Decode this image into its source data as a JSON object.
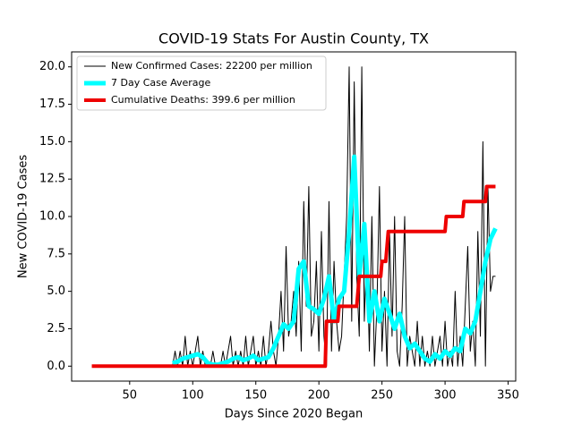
{
  "chart_data": {
    "type": "line",
    "title": "COVID-19 Stats For Austin County, TX",
    "xlabel": "Days Since 2020 Began",
    "ylabel": "New COVID-19 Cases",
    "xlim": [
      4,
      356
    ],
    "ylim": [
      -1,
      21
    ],
    "xticks": [
      50,
      100,
      150,
      200,
      250,
      300,
      350
    ],
    "yticks": [
      {
        "value": 0,
        "label": "0.0"
      },
      {
        "value": 2.5,
        "label": "2.5"
      },
      {
        "value": 5,
        "label": "5.0"
      },
      {
        "value": 7.5,
        "label": "7.5"
      },
      {
        "value": 10,
        "label": "10.0"
      },
      {
        "value": 12.5,
        "label": "12.5"
      },
      {
        "value": 15,
        "label": "15.0"
      },
      {
        "value": 17.5,
        "label": "17.5"
      },
      {
        "value": 20,
        "label": "20.0"
      }
    ],
    "legend": "upper left",
    "series": [
      {
        "name": "New Confirmed Cases: 22200 per million",
        "color": "#000000",
        "linewidth": 1,
        "x": [
          84,
          86,
          88,
          90,
          92,
          94,
          96,
          98,
          100,
          102,
          104,
          106,
          108,
          110,
          112,
          114,
          116,
          118,
          120,
          122,
          124,
          126,
          128,
          130,
          132,
          134,
          136,
          138,
          140,
          142,
          144,
          146,
          148,
          150,
          152,
          154,
          156,
          158,
          160,
          162,
          164,
          166,
          168,
          170,
          172,
          174,
          176,
          178,
          180,
          182,
          184,
          186,
          188,
          190,
          192,
          194,
          196,
          198,
          200,
          202,
          204,
          206,
          208,
          210,
          212,
          214,
          216,
          218,
          220,
          222,
          224,
          226,
          228,
          230,
          232,
          234,
          236,
          238,
          240,
          242,
          244,
          246,
          248,
          250,
          252,
          254,
          256,
          258,
          260,
          262,
          264,
          266,
          268,
          270,
          272,
          274,
          276,
          278,
          280,
          282,
          284,
          286,
          288,
          290,
          292,
          294,
          296,
          298,
          300,
          302,
          304,
          306,
          308,
          310,
          312,
          314,
          316,
          318,
          320,
          322,
          324,
          326,
          328,
          330,
          332,
          334,
          336,
          338,
          340
        ],
        "values": [
          0,
          1,
          0,
          1,
          0,
          2,
          0,
          1,
          0,
          1,
          2,
          0,
          1,
          0,
          0,
          0,
          1,
          0,
          0,
          0,
          1,
          0,
          1,
          2,
          0,
          1,
          0,
          1,
          0,
          2,
          0,
          1,
          2,
          0,
          1,
          0,
          2,
          0,
          1,
          3,
          1,
          0,
          2,
          5,
          1,
          8,
          2,
          3,
          5,
          2,
          7,
          1,
          11,
          4,
          12,
          2,
          3,
          7,
          1,
          9,
          2,
          0,
          11,
          1,
          7,
          3,
          1,
          2,
          6,
          10,
          20,
          3,
          19,
          6,
          2,
          20,
          3,
          8,
          1,
          10,
          0,
          4,
          12,
          1,
          5,
          0,
          9,
          2,
          10,
          1,
          0,
          4,
          10,
          0,
          2,
          1,
          0,
          3,
          0,
          2,
          0,
          1,
          0,
          2,
          0,
          1,
          2,
          0,
          3,
          0,
          1,
          0,
          5,
          0,
          2,
          0,
          4,
          8,
          1,
          3,
          0,
          9,
          2,
          15,
          0,
          12,
          5,
          6,
          6
        ]
      },
      {
        "name": "7 Day Case Average",
        "color": "#00ffff",
        "linewidth": 5,
        "x": [
          84,
          88,
          92,
          96,
          100,
          104,
          108,
          112,
          116,
          120,
          124,
          128,
          132,
          136,
          140,
          144,
          148,
          152,
          156,
          160,
          164,
          168,
          172,
          176,
          180,
          184,
          188,
          192,
          196,
          200,
          204,
          208,
          212,
          216,
          220,
          224,
          228,
          232,
          236,
          240,
          244,
          248,
          252,
          256,
          260,
          264,
          268,
          272,
          276,
          280,
          284,
          288,
          292,
          296,
          300,
          304,
          308,
          312,
          316,
          320,
          324,
          328,
          332,
          336,
          340
        ],
        "values": [
          0.2,
          0.3,
          0.5,
          0.6,
          0.7,
          0.8,
          0.6,
          0.2,
          0.1,
          0.1,
          0.2,
          0.3,
          0.5,
          0.6,
          0.4,
          0.5,
          0.7,
          0.4,
          0.5,
          0.6,
          1.2,
          2,
          2.8,
          2.5,
          3,
          6.5,
          7,
          4,
          3.8,
          3.5,
          4.5,
          6,
          3,
          4.5,
          5,
          9,
          14,
          6,
          9.5,
          3,
          5,
          3,
          4.5,
          3.5,
          2.5,
          3.5,
          2,
          1.2,
          1.5,
          1,
          0.5,
          0.3,
          0.8,
          0.5,
          1,
          0.7,
          1.2,
          1,
          2.5,
          2.2,
          3,
          5,
          7,
          8.5,
          9.2
        ]
      },
      {
        "name": "Cumulative Deaths: 399.6 per million",
        "color": "#ee0000",
        "linewidth": 4,
        "x": [
          20,
          205,
          206,
          215,
          216,
          230,
          231,
          232,
          249,
          250,
          253,
          254,
          255,
          300,
          301,
          314,
          315,
          332,
          333,
          340
        ],
        "values": [
          0,
          0,
          3,
          3,
          4,
          4,
          5,
          6,
          6,
          7,
          7,
          8,
          9,
          9,
          10,
          10,
          11,
          11,
          12,
          12
        ]
      }
    ]
  }
}
